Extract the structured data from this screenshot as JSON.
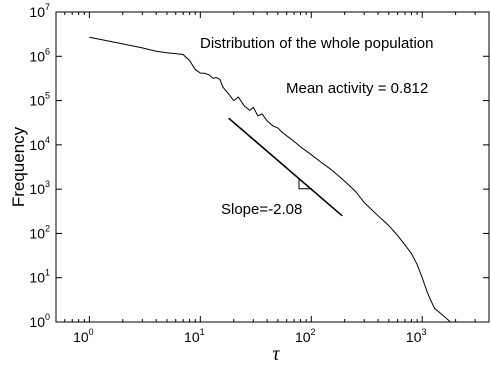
{
  "chart_data": {
    "type": "line",
    "x_scale": "log",
    "y_scale": "log",
    "xlim": [
      0.5,
      4000
    ],
    "ylim": [
      1,
      10000000
    ],
    "xlabel": "τ",
    "ylabel": "Frequency",
    "grid": false,
    "legend": "none",
    "x_ticks": [
      {
        "base": "10",
        "exp": "0"
      },
      {
        "base": "10",
        "exp": "1"
      },
      {
        "base": "10",
        "exp": "2"
      },
      {
        "base": "10",
        "exp": "3"
      }
    ],
    "y_ticks": [
      {
        "base": "10",
        "exp": "0"
      },
      {
        "base": "10",
        "exp": "1"
      },
      {
        "base": "10",
        "exp": "2"
      },
      {
        "base": "10",
        "exp": "3"
      },
      {
        "base": "10",
        "exp": "4"
      },
      {
        "base": "10",
        "exp": "5"
      },
      {
        "base": "10",
        "exp": "6"
      },
      {
        "base": "10",
        "exp": "7"
      }
    ],
    "series": [
      {
        "color": "#000000",
        "points": [
          [
            1,
            2700000
          ],
          [
            1.5,
            2200000
          ],
          [
            2,
            1900000
          ],
          [
            3,
            1550000
          ],
          [
            4,
            1300000
          ],
          [
            5,
            1200000
          ],
          [
            6,
            1150000
          ],
          [
            7,
            1100000
          ],
          [
            8,
            800000
          ],
          [
            9,
            500000
          ],
          [
            10,
            420000
          ],
          [
            11,
            410000
          ],
          [
            12,
            380000
          ],
          [
            13,
            320000
          ],
          [
            14,
            330000
          ],
          [
            15,
            300000
          ],
          [
            16,
            200000
          ],
          [
            18,
            140000
          ],
          [
            20,
            100000
          ],
          [
            22,
            120000
          ],
          [
            25,
            75000
          ],
          [
            28,
            60000
          ],
          [
            30,
            70000
          ],
          [
            33,
            45000
          ],
          [
            36,
            50000
          ],
          [
            40,
            35000
          ],
          [
            45,
            27000
          ],
          [
            50,
            24000
          ],
          [
            55,
            19000
          ],
          [
            60,
            16000
          ],
          [
            70,
            12000
          ],
          [
            80,
            9000
          ],
          [
            100,
            6000
          ],
          [
            120,
            4200
          ],
          [
            150,
            2800
          ],
          [
            200,
            1500
          ],
          [
            250,
            900
          ],
          [
            300,
            500
          ],
          [
            400,
            250
          ],
          [
            500,
            150
          ],
          [
            600,
            90
          ],
          [
            700,
            55
          ],
          [
            800,
            35
          ],
          [
            900,
            20
          ],
          [
            1000,
            10
          ],
          [
            1100,
            5
          ],
          [
            1200,
            3
          ],
          [
            1300,
            2
          ],
          [
            1500,
            1.5
          ],
          [
            1800,
            1
          ],
          [
            2000,
            1
          ]
        ]
      }
    ],
    "slope_line": {
      "x": [
        18,
        190
      ],
      "y": [
        40000,
        250
      ],
      "label": "Slope=-2.08"
    },
    "annotations": [
      "Distribution of the whole population",
      "Mean activity = 0.812"
    ]
  }
}
